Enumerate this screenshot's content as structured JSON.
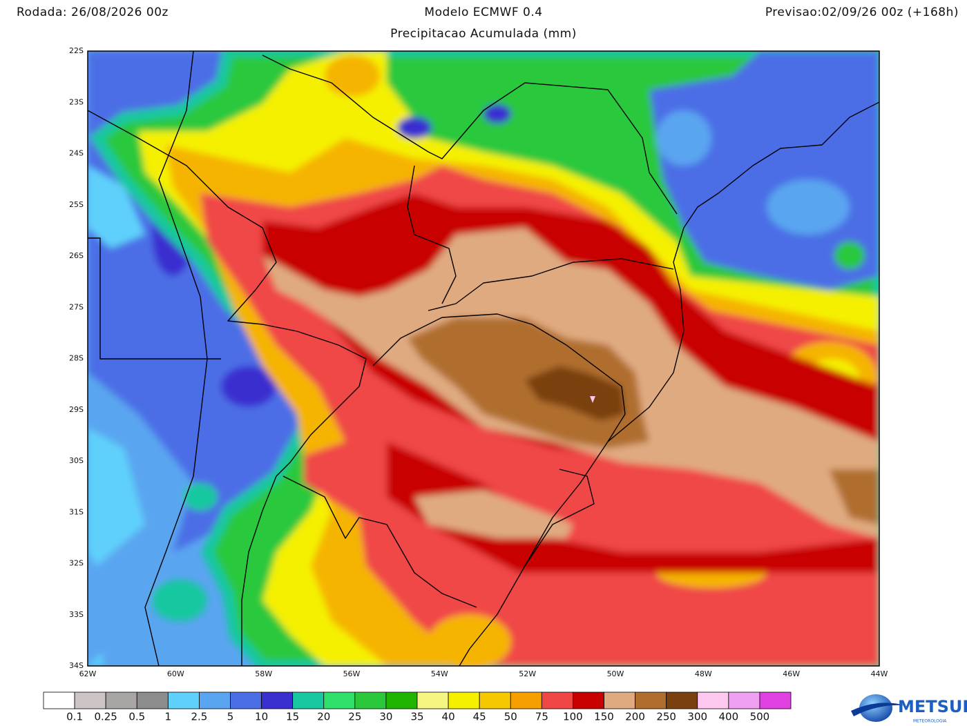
{
  "header": {
    "run": "Rodada: 26/08/2026 00z",
    "model": "Modelo ECMWF 0.4",
    "forecast": "Previsao:02/09/26 00z (+168h)",
    "subtitle": "Precipitacao Acumulada (mm)"
  },
  "map": {
    "lat_labels": [
      "22S",
      "23S",
      "24S",
      "25S",
      "26S",
      "27S",
      "28S",
      "29S",
      "30S",
      "31S",
      "32S",
      "33S",
      "34S"
    ],
    "lon_labels": [
      "62W",
      "60W",
      "58W",
      "56W",
      "54W",
      "52W",
      "50W",
      "48W",
      "46W",
      "44W"
    ]
  },
  "legend": {
    "labels": [
      "0.1",
      "0.25",
      "0.5",
      "1",
      "2.5",
      "5",
      "10",
      "15",
      "20",
      "25",
      "30",
      "35",
      "40",
      "45",
      "50",
      "75",
      "100",
      "150",
      "200",
      "250",
      "300",
      "400",
      "500"
    ]
  },
  "logo": {
    "name": "METSUL",
    "tagline": "METEOROLOGIA"
  }
}
